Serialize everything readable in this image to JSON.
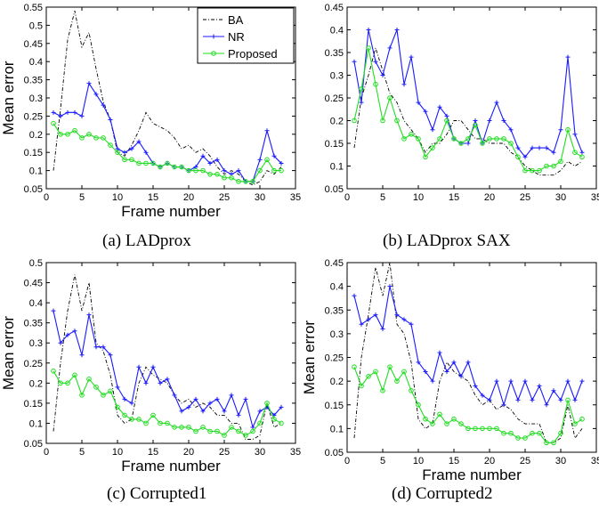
{
  "colors": {
    "BA": "#000000",
    "NR": "#1a1aff",
    "Proposed": "#22dd22"
  },
  "legend_labels": [
    "BA",
    "NR",
    "Proposed"
  ],
  "chart_data": [
    {
      "type": "line",
      "caption": "(a) LADprox",
      "xlabel": "Frame number",
      "ylabel": "Mean error",
      "xlim": [
        0,
        35
      ],
      "ylim": [
        0.05,
        0.55
      ],
      "xticks": [
        "0",
        "5",
        "10",
        "15",
        "20",
        "25",
        "30",
        "35"
      ],
      "yticks": [
        "0.05",
        "0.1",
        "0.15",
        "0.2",
        "0.25",
        "0.3",
        "0.35",
        "0.4",
        "0.45",
        "0.5",
        "0.55"
      ],
      "legend_position": "top-right",
      "x": [
        1,
        2,
        3,
        4,
        5,
        6,
        7,
        8,
        9,
        10,
        11,
        12,
        13,
        14,
        15,
        16,
        17,
        18,
        19,
        20,
        21,
        22,
        23,
        24,
        25,
        26,
        27,
        28,
        29,
        30,
        31,
        32,
        33
      ],
      "series": [
        {
          "name": "BA",
          "style": "dashdot",
          "values": [
            0.1,
            0.27,
            0.46,
            0.54,
            0.44,
            0.48,
            0.38,
            0.29,
            0.24,
            0.15,
            0.14,
            0.17,
            0.21,
            0.26,
            0.23,
            0.22,
            0.21,
            0.19,
            0.16,
            0.17,
            0.15,
            0.16,
            0.14,
            0.11,
            0.09,
            0.1,
            0.09,
            0.07,
            0.06,
            0.07,
            0.1,
            0.09,
            0.11
          ]
        },
        {
          "name": "NR",
          "style": "plus",
          "values": [
            0.26,
            0.25,
            0.26,
            0.26,
            0.25,
            0.34,
            0.31,
            0.28,
            0.24,
            0.16,
            0.15,
            0.16,
            0.18,
            0.15,
            0.12,
            0.11,
            0.12,
            0.11,
            0.11,
            0.1,
            0.11,
            0.14,
            0.12,
            0.13,
            0.1,
            0.09,
            0.1,
            0.07,
            0.07,
            0.13,
            0.21,
            0.14,
            0.12
          ]
        },
        {
          "name": "Proposed",
          "style": "circle",
          "values": [
            0.23,
            0.2,
            0.2,
            0.21,
            0.19,
            0.2,
            0.19,
            0.19,
            0.17,
            0.15,
            0.13,
            0.13,
            0.12,
            0.12,
            0.12,
            0.11,
            0.12,
            0.11,
            0.11,
            0.1,
            0.1,
            0.1,
            0.09,
            0.09,
            0.08,
            0.08,
            0.07,
            0.07,
            0.07,
            0.1,
            0.13,
            0.1,
            0.1
          ]
        }
      ]
    },
    {
      "type": "line",
      "caption": "(b) LADprox SAX",
      "xlabel": "",
      "ylabel": "",
      "xlim": [
        0,
        35
      ],
      "ylim": [
        0.05,
        0.45
      ],
      "xticks": [
        "0",
        "5",
        "10",
        "15",
        "20",
        "25",
        "30",
        "35"
      ],
      "yticks": [
        "0.05",
        "0.1",
        "0.15",
        "0.2",
        "0.25",
        "0.3",
        "0.35",
        "0.4",
        "0.45"
      ],
      "x": [
        1,
        2,
        3,
        4,
        5,
        6,
        7,
        8,
        9,
        10,
        11,
        12,
        13,
        14,
        15,
        16,
        17,
        18,
        19,
        20,
        21,
        22,
        23,
        24,
        25,
        26,
        27,
        28,
        29,
        30,
        31,
        32,
        33
      ],
      "series": [
        {
          "name": "BA",
          "style": "dashdot",
          "values": [
            0.14,
            0.25,
            0.3,
            0.36,
            0.31,
            0.26,
            0.24,
            0.2,
            0.18,
            0.16,
            0.13,
            0.15,
            0.15,
            0.17,
            0.2,
            0.2,
            0.18,
            0.16,
            0.16,
            0.15,
            0.15,
            0.15,
            0.13,
            0.12,
            0.1,
            0.09,
            0.08,
            0.08,
            0.08,
            0.09,
            0.11,
            0.1,
            0.11
          ]
        },
        {
          "name": "NR",
          "style": "plus",
          "values": [
            0.33,
            0.24,
            0.4,
            0.33,
            0.3,
            0.36,
            0.4,
            0.28,
            0.34,
            0.24,
            0.22,
            0.18,
            0.23,
            0.21,
            0.16,
            0.15,
            0.15,
            0.2,
            0.15,
            0.2,
            0.24,
            0.2,
            0.18,
            0.14,
            0.12,
            0.14,
            0.14,
            0.14,
            0.13,
            0.18,
            0.34,
            0.17,
            0.13
          ]
        },
        {
          "name": "Proposed",
          "style": "circle",
          "values": [
            0.2,
            0.27,
            0.36,
            0.28,
            0.2,
            0.25,
            0.2,
            0.16,
            0.17,
            0.16,
            0.12,
            0.14,
            0.16,
            0.2,
            0.16,
            0.15,
            0.16,
            0.19,
            0.15,
            0.16,
            0.16,
            0.16,
            0.15,
            0.12,
            0.09,
            0.09,
            0.09,
            0.1,
            0.1,
            0.11,
            0.18,
            0.13,
            0.12
          ]
        }
      ]
    },
    {
      "type": "line",
      "caption": "(c) Corrupted1",
      "xlabel": "Frame number",
      "ylabel": "Mean error",
      "xlim": [
        0,
        35
      ],
      "ylim": [
        0.05,
        0.5
      ],
      "xticks": [
        "0",
        "5",
        "10",
        "15",
        "20",
        "25",
        "30",
        "35"
      ],
      "yticks": [
        "0.05",
        "0.1",
        "0.15",
        "0.2",
        "0.25",
        "0.3",
        "0.35",
        "0.4",
        "0.45",
        "0.5"
      ],
      "x": [
        1,
        2,
        3,
        4,
        5,
        6,
        7,
        8,
        9,
        10,
        11,
        12,
        13,
        14,
        15,
        16,
        17,
        18,
        19,
        20,
        21,
        22,
        23,
        24,
        25,
        26,
        27,
        28,
        29,
        30,
        31,
        32,
        33
      ],
      "series": [
        {
          "name": "BA",
          "style": "dashdot",
          "values": [
            0.08,
            0.25,
            0.38,
            0.47,
            0.38,
            0.45,
            0.3,
            0.28,
            0.22,
            0.12,
            0.1,
            0.11,
            0.2,
            0.24,
            0.22,
            0.21,
            0.2,
            0.17,
            0.15,
            0.16,
            0.14,
            0.15,
            0.14,
            0.12,
            0.12,
            0.1,
            0.1,
            0.06,
            0.06,
            0.07,
            0.15,
            0.09,
            0.1
          ]
        },
        {
          "name": "NR",
          "style": "plus",
          "values": [
            0.38,
            0.3,
            0.32,
            0.33,
            0.27,
            0.37,
            0.29,
            0.29,
            0.27,
            0.19,
            0.16,
            0.15,
            0.24,
            0.2,
            0.24,
            0.2,
            0.21,
            0.17,
            0.13,
            0.14,
            0.16,
            0.13,
            0.15,
            0.16,
            0.13,
            0.17,
            0.12,
            0.16,
            0.09,
            0.13,
            0.14,
            0.12,
            0.14
          ]
        },
        {
          "name": "Proposed",
          "style": "circle",
          "values": [
            0.23,
            0.2,
            0.2,
            0.22,
            0.17,
            0.21,
            0.19,
            0.17,
            0.18,
            0.14,
            0.12,
            0.11,
            0.11,
            0.1,
            0.12,
            0.1,
            0.1,
            0.09,
            0.09,
            0.09,
            0.08,
            0.09,
            0.08,
            0.08,
            0.07,
            0.09,
            0.08,
            0.07,
            0.08,
            0.1,
            0.15,
            0.11,
            0.1
          ]
        }
      ]
    },
    {
      "type": "line",
      "caption": "(d) Corrupted2",
      "xlabel": "Frame number",
      "ylabel": "Mean error",
      "xlim": [
        0,
        35
      ],
      "ylim": [
        0.05,
        0.45
      ],
      "xticks": [
        "0",
        "5",
        "10",
        "15",
        "20",
        "25",
        "30",
        "35"
      ],
      "yticks": [
        "0.05",
        "0.1",
        "0.15",
        "0.2",
        "0.25",
        "0.3",
        "0.35",
        "0.4",
        "0.45"
      ],
      "x": [
        1,
        2,
        3,
        4,
        5,
        6,
        7,
        8,
        9,
        10,
        11,
        12,
        13,
        14,
        15,
        16,
        17,
        18,
        19,
        20,
        21,
        22,
        23,
        24,
        25,
        26,
        27,
        28,
        29,
        30,
        31,
        32,
        33
      ],
      "series": [
        {
          "name": "BA",
          "style": "dashdot",
          "values": [
            0.08,
            0.25,
            0.34,
            0.44,
            0.38,
            0.45,
            0.32,
            0.3,
            0.24,
            0.12,
            0.1,
            0.11,
            0.2,
            0.24,
            0.22,
            0.21,
            0.2,
            0.17,
            0.15,
            0.16,
            0.14,
            0.15,
            0.14,
            0.12,
            0.11,
            0.11,
            0.11,
            0.07,
            0.07,
            0.08,
            0.15,
            0.08,
            0.1
          ]
        },
        {
          "name": "NR",
          "style": "plus",
          "values": [
            0.38,
            0.32,
            0.33,
            0.34,
            0.31,
            0.4,
            0.34,
            0.33,
            0.32,
            0.24,
            0.22,
            0.2,
            0.26,
            0.22,
            0.24,
            0.21,
            0.24,
            0.19,
            0.17,
            0.16,
            0.2,
            0.15,
            0.2,
            0.16,
            0.2,
            0.16,
            0.19,
            0.15,
            0.18,
            0.16,
            0.2,
            0.16,
            0.2
          ]
        },
        {
          "name": "Proposed",
          "style": "circle",
          "values": [
            0.23,
            0.19,
            0.21,
            0.22,
            0.18,
            0.23,
            0.2,
            0.22,
            0.18,
            0.15,
            0.12,
            0.11,
            0.13,
            0.11,
            0.12,
            0.11,
            0.1,
            0.1,
            0.1,
            0.1,
            0.1,
            0.09,
            0.09,
            0.08,
            0.08,
            0.09,
            0.09,
            0.07,
            0.07,
            0.09,
            0.16,
            0.11,
            0.12
          ]
        }
      ]
    }
  ]
}
